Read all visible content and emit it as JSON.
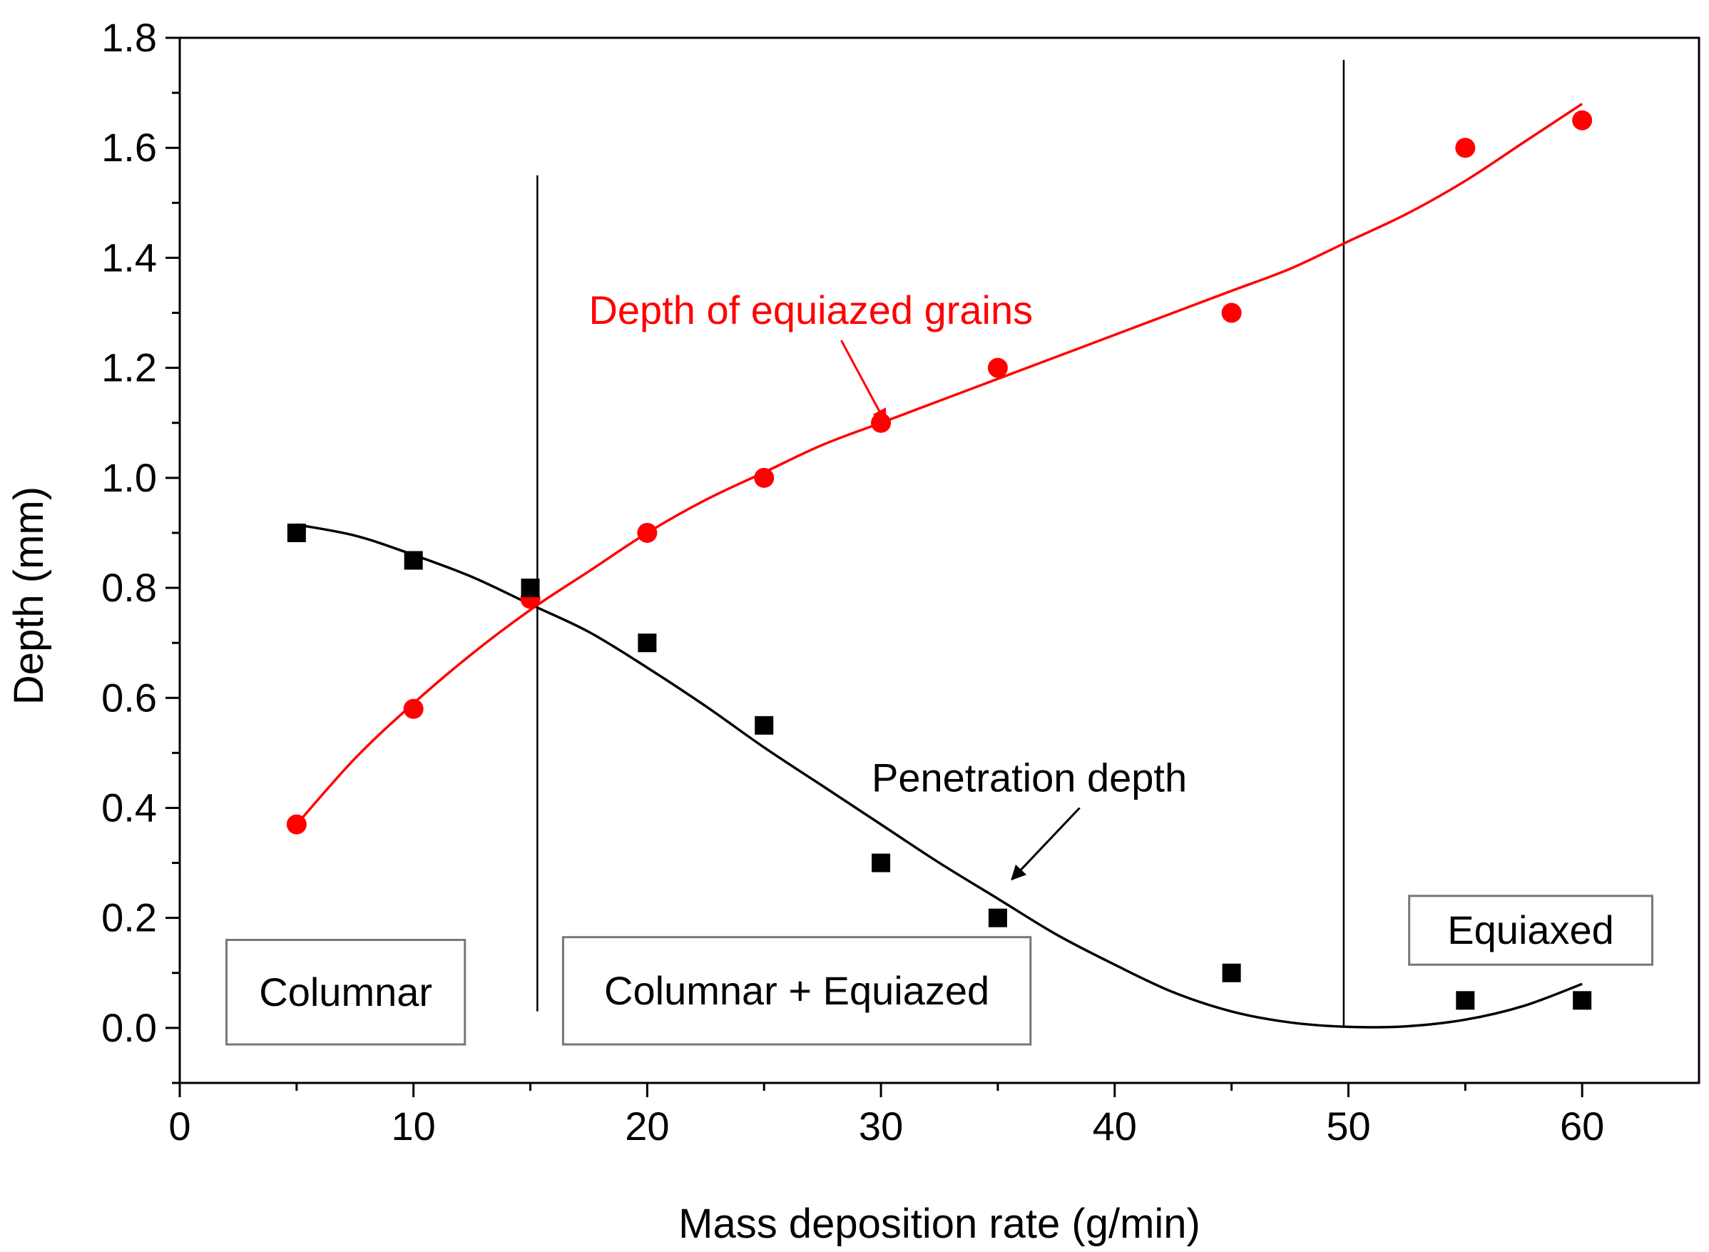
{
  "chart_data": {
    "type": "scatter",
    "title": "",
    "xlabel": "Mass deposition rate (g/min)",
    "ylabel": "Depth (mm)",
    "xlim": [
      0,
      65
    ],
    "ylim": [
      -0.1,
      1.8
    ],
    "xticks": [
      0,
      10,
      20,
      30,
      40,
      50,
      60
    ],
    "xtick_labels": [
      "0",
      "10",
      "20",
      "30",
      "40",
      "50",
      "60"
    ],
    "yticks": [
      0.0,
      0.2,
      0.4,
      0.6,
      0.8,
      1.0,
      1.2,
      1.4,
      1.6,
      1.8
    ],
    "ytick_labels": [
      "0.0",
      "0.2",
      "0.4",
      "0.6",
      "0.8",
      "1.0",
      "1.2",
      "1.4",
      "1.6",
      "1.8"
    ],
    "grid": false,
    "series": [
      {
        "name": "Depth of equiazed grains",
        "color": "#ff0000",
        "marker": "circle",
        "x": [
          5,
          10,
          15,
          20,
          25,
          30,
          35,
          45,
          55,
          60
        ],
        "y": [
          0.37,
          0.58,
          0.78,
          0.9,
          1.0,
          1.1,
          1.2,
          1.3,
          1.6,
          1.65
        ],
        "fit_curve": {
          "x": [
            5,
            7.5,
            10,
            12.5,
            15,
            17.5,
            20,
            22.5,
            25,
            27.5,
            30,
            32.5,
            35,
            37.5,
            40,
            42.5,
            45,
            47.5,
            50,
            52.5,
            55,
            57.5,
            60
          ],
          "y": [
            0.37,
            0.49,
            0.59,
            0.68,
            0.76,
            0.83,
            0.9,
            0.96,
            1.01,
            1.06,
            1.1,
            1.14,
            1.18,
            1.22,
            1.26,
            1.3,
            1.34,
            1.38,
            1.43,
            1.48,
            1.54,
            1.61,
            1.68
          ]
        }
      },
      {
        "name": "Penetration depth",
        "color": "#000000",
        "marker": "square",
        "x": [
          5,
          10,
          15,
          20,
          25,
          30,
          35,
          45,
          55,
          60
        ],
        "y": [
          0.9,
          0.85,
          0.8,
          0.7,
          0.55,
          0.3,
          0.2,
          0.1,
          0.05,
          0.05
        ],
        "fit_curve": {
          "x": [
            5,
            7.5,
            10,
            12.5,
            15,
            17.5,
            20,
            22.5,
            25,
            27.5,
            30,
            32.5,
            35,
            37.5,
            40,
            42.5,
            45,
            47.5,
            50,
            52.5,
            55,
            57.5,
            60
          ],
          "y": [
            0.915,
            0.895,
            0.86,
            0.82,
            0.77,
            0.72,
            0.655,
            0.585,
            0.51,
            0.44,
            0.37,
            0.3,
            0.235,
            0.17,
            0.115,
            0.065,
            0.03,
            0.01,
            0.002,
            0.003,
            0.015,
            0.04,
            0.08
          ]
        }
      }
    ],
    "vertical_lines": [
      {
        "x": 15.3,
        "y_from": 0.03,
        "y_to": 1.55
      },
      {
        "x": 49.8,
        "y_from": 0.0,
        "y_to": 1.76
      }
    ],
    "annotations": [
      {
        "text": "Depth of equiazed grains",
        "color": "#ff0000",
        "x": 17.5,
        "y": 1.28,
        "arrow_from": [
          28.3,
          1.25
        ],
        "arrow_to": [
          30.2,
          1.1
        ]
      },
      {
        "text": "Penetration depth",
        "color": "#000000",
        "x": 29.6,
        "y": 0.43,
        "arrow_from": [
          38.5,
          0.4
        ],
        "arrow_to": [
          35.6,
          0.27
        ]
      }
    ],
    "regions": [
      {
        "text": "Columnar",
        "x0": 2.0,
        "x1": 12.2,
        "y0": -0.03,
        "y1": 0.16
      },
      {
        "text": "Columnar + Equiazed",
        "x0": 16.4,
        "x1": 36.4,
        "y0": -0.03,
        "y1": 0.165
      },
      {
        "text": "Equiaxed",
        "x0": 52.6,
        "x1": 63.0,
        "y0": 0.115,
        "y1": 0.24
      }
    ]
  }
}
